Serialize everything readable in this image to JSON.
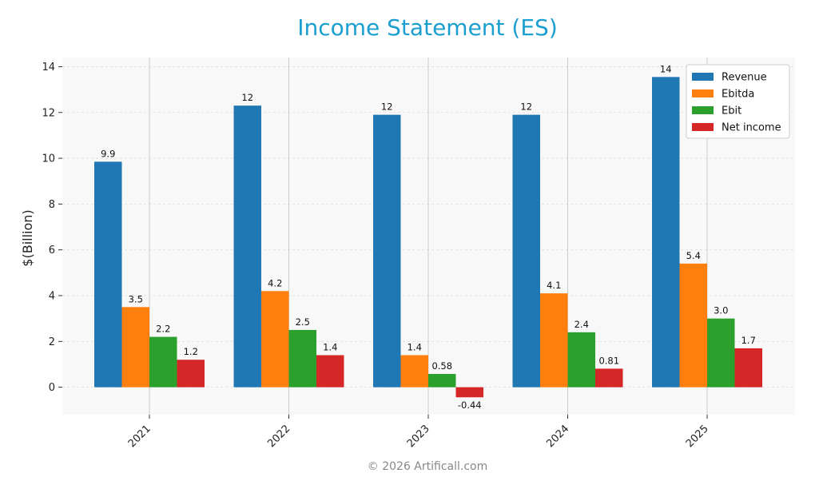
{
  "chart_data": {
    "type": "bar",
    "title": "Income Statement (ES)",
    "ylabel": "$(Billion)",
    "xlabel": "",
    "categories": [
      "2021",
      "2022",
      "2023",
      "2024",
      "2025"
    ],
    "ylim": [
      -1.2,
      14.4
    ],
    "yticks": [
      0,
      2,
      4,
      6,
      8,
      10,
      12,
      14
    ],
    "grid": true,
    "legend_position": "top-right",
    "series": [
      {
        "name": "Revenue",
        "color": "#1f77b4",
        "values": [
          9.85,
          12.3,
          11.9,
          11.9,
          13.55
        ],
        "labels": [
          "9.9",
          "12",
          "12",
          "12",
          "14"
        ]
      },
      {
        "name": "Ebitda",
        "color": "#ff7f0e",
        "values": [
          3.5,
          4.2,
          1.4,
          4.1,
          5.4
        ],
        "labels": [
          "3.5",
          "4.2",
          "1.4",
          "4.1",
          "5.4"
        ]
      },
      {
        "name": "Ebit",
        "color": "#2ca02c",
        "values": [
          2.2,
          2.5,
          0.58,
          2.4,
          3.0
        ],
        "labels": [
          "2.2",
          "2.5",
          "0.58",
          "2.4",
          "3.0"
        ]
      },
      {
        "name": "Net income",
        "color": "#d62728",
        "values": [
          1.2,
          1.4,
          -0.44,
          0.81,
          1.7
        ],
        "labels": [
          "1.2",
          "1.4",
          "-0.44",
          "0.81",
          "1.7"
        ]
      }
    ]
  },
  "footer": "© 2026 Artificall.com"
}
